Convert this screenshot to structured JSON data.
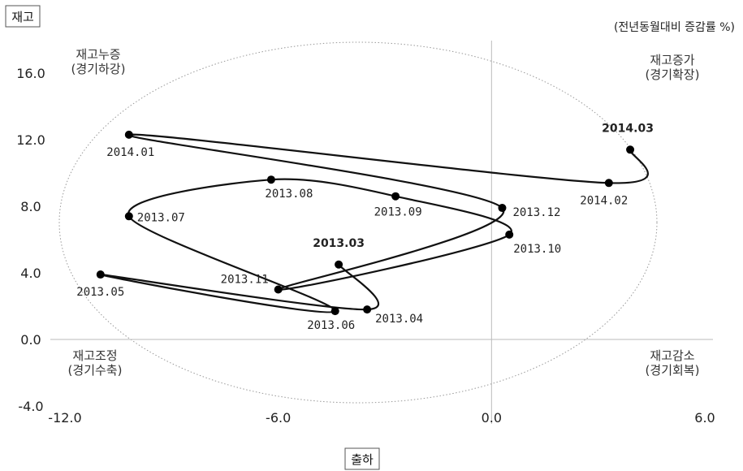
{
  "chart_data": {
    "type": "line",
    "title": "",
    "unit_note": "(전년동월대비 증감률 %)",
    "ylabel": "재고",
    "xlabel": "출하",
    "xlim": [
      -12,
      6
    ],
    "ylim": [
      -4,
      16
    ],
    "xticks": [
      "-12.0",
      "-6.0",
      "0.0",
      "6.0"
    ],
    "yticks": [
      "-4.0",
      "0.0",
      "4.0",
      "8.0",
      "12.0",
      "16.0"
    ],
    "quadrants": {
      "top_left": [
        "재고누증",
        "(경기하강)"
      ],
      "top_right": [
        "재고증가",
        "(경기확장)"
      ],
      "bottom_left": [
        "재고조정",
        "(경기수축)"
      ],
      "bottom_right": [
        "재고감소",
        "(경기회복)"
      ]
    },
    "points": [
      {
        "label": "2013.03",
        "x": -4.3,
        "y": 4.5,
        "bold": true
      },
      {
        "label": "2013.04",
        "x": -3.5,
        "y": 1.8,
        "bold": false
      },
      {
        "label": "2013.05",
        "x": -11.0,
        "y": 3.9,
        "bold": false
      },
      {
        "label": "2013.06",
        "x": -4.4,
        "y": 1.7,
        "bold": false
      },
      {
        "label": "2013.07",
        "x": -10.2,
        "y": 7.4,
        "bold": false
      },
      {
        "label": "2013.08",
        "x": -6.2,
        "y": 9.6,
        "bold": false
      },
      {
        "label": "2013.09",
        "x": -2.7,
        "y": 8.6,
        "bold": false
      },
      {
        "label": "2013.10",
        "x": 0.5,
        "y": 6.3,
        "bold": false
      },
      {
        "label": "2013.11",
        "x": -6.0,
        "y": 3.0,
        "bold": false
      },
      {
        "label": "2013.12",
        "x": 0.3,
        "y": 7.9,
        "bold": false
      },
      {
        "label": "2014.01",
        "x": -10.2,
        "y": 12.3,
        "bold": false
      },
      {
        "label": "2014.02",
        "x": 3.3,
        "y": 9.4,
        "bold": false
      },
      {
        "label": "2014.03",
        "x": 3.9,
        "y": 11.4,
        "bold": true
      }
    ]
  }
}
